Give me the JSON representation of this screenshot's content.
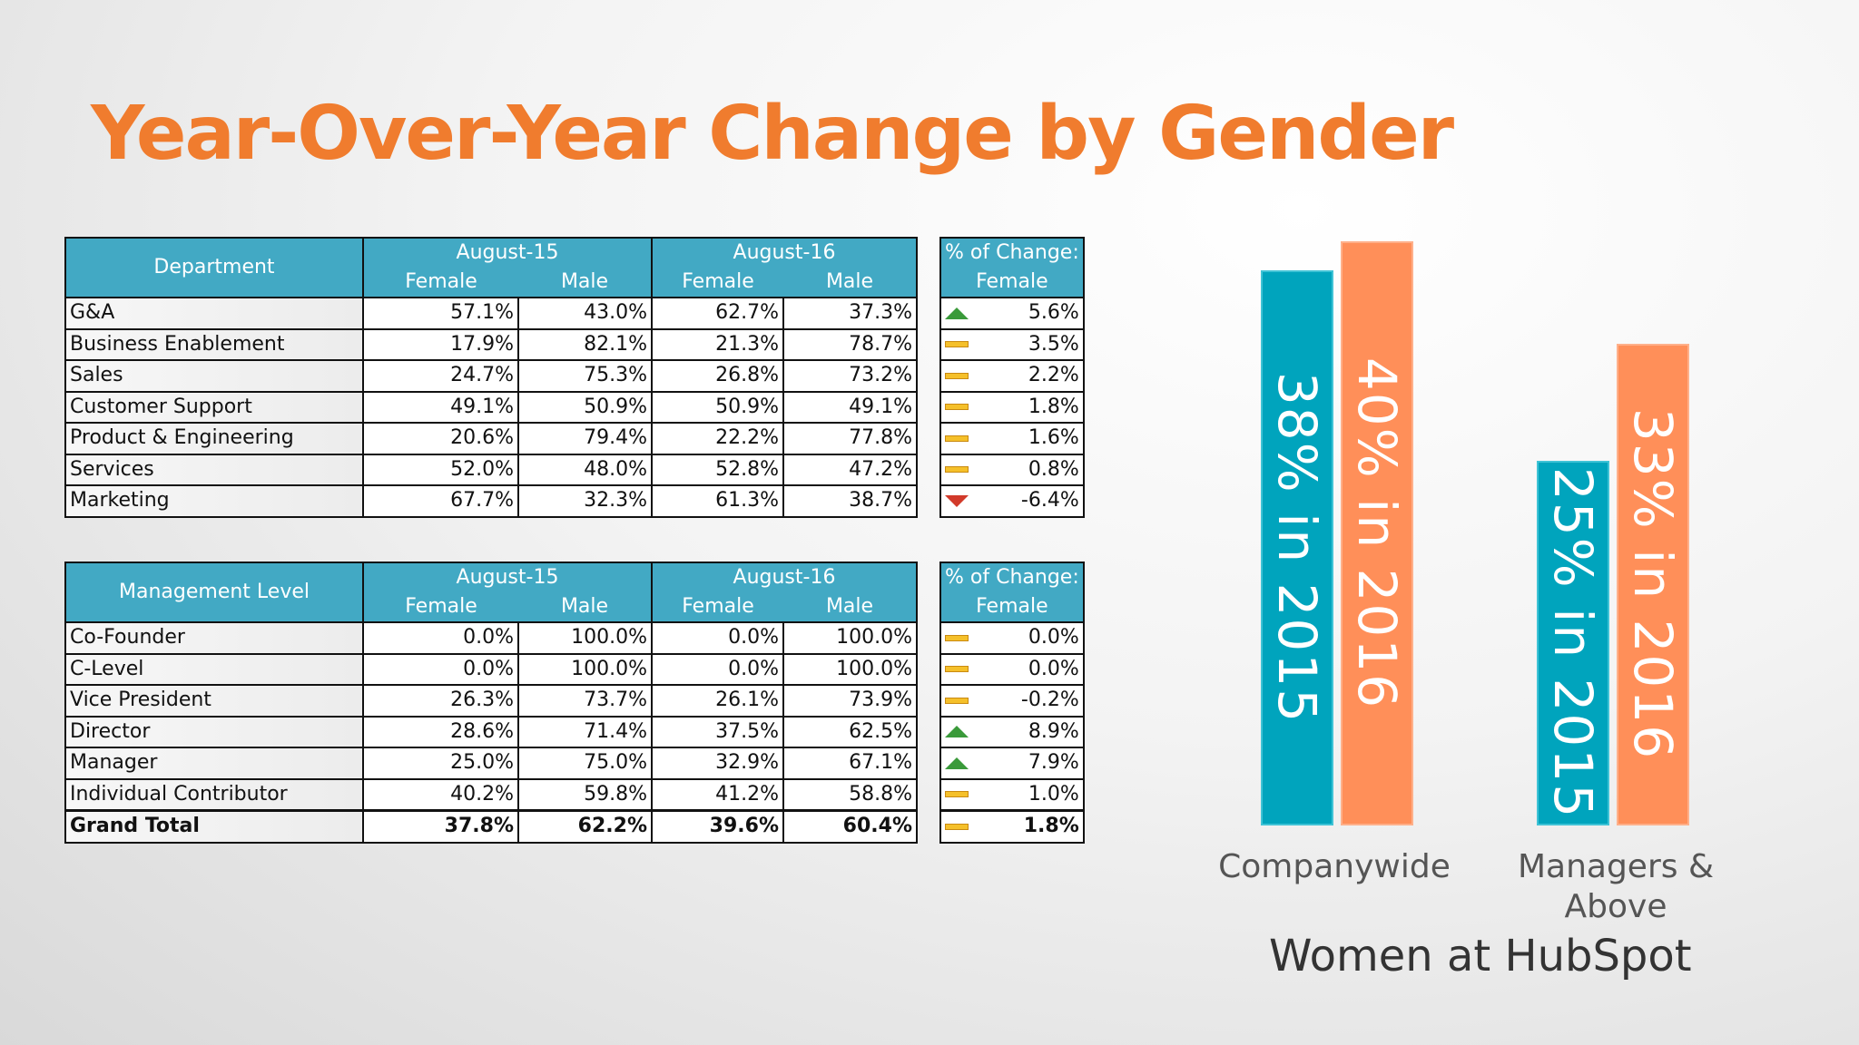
{
  "title": "Year-Over-Year Change by Gender",
  "colors": {
    "title": "#F07C2E",
    "header": "#42A9C4",
    "bar_2015": "#00A4BD",
    "bar_2016": "#FF8F59",
    "up": "#3a9a3a",
    "down": "#d23a2a",
    "flat": "#F5C02A"
  },
  "dept_table": {
    "corner": "Department",
    "period1": "August-15",
    "period2": "August-16",
    "change_header": "% of Change:",
    "female": "Female",
    "male": "Male",
    "rows": [
      {
        "label": "G&A",
        "f15": "57.1%",
        "m15": "43.0%",
        "f16": "62.7%",
        "m16": "37.3%",
        "indicator": "up",
        "change": "5.6%"
      },
      {
        "label": "Business Enablement",
        "f15": "17.9%",
        "m15": "82.1%",
        "f16": "21.3%",
        "m16": "78.7%",
        "indicator": "flat",
        "change": "3.5%"
      },
      {
        "label": "Sales",
        "f15": "24.7%",
        "m15": "75.3%",
        "f16": "26.8%",
        "m16": "73.2%",
        "indicator": "flat",
        "change": "2.2%"
      },
      {
        "label": "Customer Support",
        "f15": "49.1%",
        "m15": "50.9%",
        "f16": "50.9%",
        "m16": "49.1%",
        "indicator": "flat",
        "change": "1.8%"
      },
      {
        "label": "Product & Engineering",
        "f15": "20.6%",
        "m15": "79.4%",
        "f16": "22.2%",
        "m16": "77.8%",
        "indicator": "flat",
        "change": "1.6%"
      },
      {
        "label": "Services",
        "f15": "52.0%",
        "m15": "48.0%",
        "f16": "52.8%",
        "m16": "47.2%",
        "indicator": "flat",
        "change": "0.8%"
      },
      {
        "label": "Marketing",
        "f15": "67.7%",
        "m15": "32.3%",
        "f16": "61.3%",
        "m16": "38.7%",
        "indicator": "down",
        "change": "-6.4%"
      }
    ]
  },
  "mgmt_table": {
    "corner": "Management Level",
    "period1": "August-15",
    "period2": "August-16",
    "change_header": "% of Change:",
    "female": "Female",
    "male": "Male",
    "rows": [
      {
        "label": "Co-Founder",
        "f15": "0.0%",
        "m15": "100.0%",
        "f16": "0.0%",
        "m16": "100.0%",
        "indicator": "flat",
        "change": "0.0%"
      },
      {
        "label": "C-Level",
        "f15": "0.0%",
        "m15": "100.0%",
        "f16": "0.0%",
        "m16": "100.0%",
        "indicator": "flat",
        "change": "0.0%"
      },
      {
        "label": "Vice President",
        "f15": "26.3%",
        "m15": "73.7%",
        "f16": "26.1%",
        "m16": "73.9%",
        "indicator": "flat",
        "change": "-0.2%"
      },
      {
        "label": "Director",
        "f15": "28.6%",
        "m15": "71.4%",
        "f16": "37.5%",
        "m16": "62.5%",
        "indicator": "up",
        "change": "8.9%"
      },
      {
        "label": "Manager",
        "f15": "25.0%",
        "m15": "75.0%",
        "f16": "32.9%",
        "m16": "67.1%",
        "indicator": "up",
        "change": "7.9%"
      },
      {
        "label": "Individual Contributor",
        "f15": "40.2%",
        "m15": "59.8%",
        "f16": "41.2%",
        "m16": "58.8%",
        "indicator": "flat",
        "change": "1.0%"
      }
    ],
    "total": {
      "label": "Grand Total",
      "f15": "37.8%",
      "m15": "62.2%",
      "f16": "39.6%",
      "m16": "60.4%",
      "indicator": "flat",
      "change": "1.8%"
    }
  },
  "chart_data": {
    "type": "bar",
    "title": "Women at HubSpot",
    "categories": [
      "Companywide",
      "Managers & Above"
    ],
    "series": [
      {
        "name": "2015",
        "values": [
          38,
          25
        ],
        "labels": [
          "38% in 2015",
          "25% in 2015"
        ]
      },
      {
        "name": "2016",
        "values": [
          40,
          33
        ],
        "labels": [
          "40% in 2016",
          "33% in 2016"
        ]
      }
    ],
    "ylim": [
      0,
      40
    ]
  }
}
